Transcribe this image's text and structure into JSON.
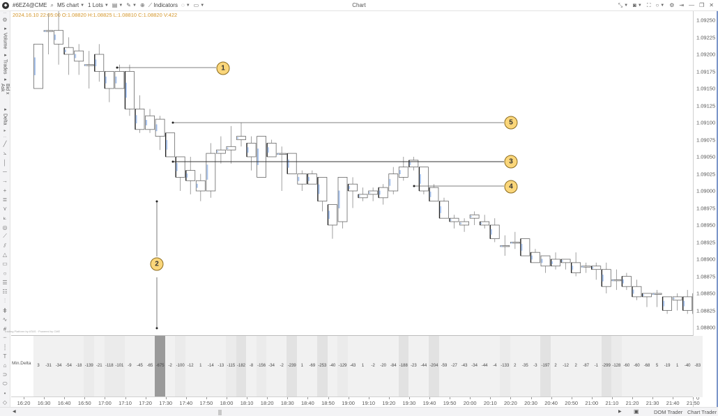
{
  "toolbar": {
    "symbol": "#6EZ4@CME",
    "chart_type": "M5 chart",
    "lots": "1 Lots",
    "indicators_label": "Indicators",
    "window_title": "Chart",
    "icons": [
      "search-icon",
      "template-icon",
      "pencil-icon",
      "zoom-icon",
      "indicators-icon",
      "circle-icon",
      "layout-icon",
      "collapse-icon",
      "camera-icon",
      "fullscreen-icon",
      "circle-icon",
      "gear-icon",
      "pin-icon",
      "minimize-icon",
      "restore-icon",
      "close-icon"
    ]
  },
  "ohlc_line": "2024.16.10 22:05:00 O:1.08820 H:1.08825 L:1.08810 C:1.08820 V:422",
  "left_tabs": [
    "Volume",
    "Trades",
    "Bid x Ask",
    "Delta"
  ],
  "left_tools": [
    "line-tool-icon",
    "ray-tool-icon",
    "vertical-line-icon",
    "horizontal-line-icon",
    "arrow-icon",
    "crosshair-icon",
    "channel-icon",
    "pitchfork-icon",
    "fan-icon",
    "target-icon",
    "ruler-icon",
    "parallel-icon",
    "triangle-icon",
    "rectangle-icon",
    "ellipse-icon",
    "fib-retracement-icon",
    "fib-extension-icon",
    "fib-time-icon",
    "gann-icon",
    "wave-icon",
    "measure-icon",
    "range-icon",
    "vertical-range-icon",
    "text-icon",
    "tag-icon",
    "callout-icon",
    "note-icon",
    "dot-icon",
    "magnet-icon"
  ],
  "price_axis": {
    "labels": [
      "1.09250",
      "1.09225",
      "1.09200",
      "1.09175",
      "1.09150",
      "1.09125",
      "1.09100",
      "1.09075",
      "1.09050",
      "1.09025",
      "1.09000",
      "1.08975",
      "1.08950",
      "1.08925",
      "1.08900",
      "1.08875",
      "1.08850",
      "1.08825",
      "1.08800"
    ],
    "delta_top": "0",
    "delta_bottom": "0"
  },
  "time_axis": [
    "16:20",
    "16:30",
    "16:40",
    "16:50",
    "17:00",
    "17:10",
    "17:20",
    "17:30",
    "17:40",
    "17:50",
    "18:00",
    "18:10",
    "18:20",
    "18:30",
    "18:40",
    "18:50",
    "19:00",
    "19:10",
    "19:20",
    "19:30",
    "19:40",
    "19:50",
    "20:00",
    "20:10",
    "20:20",
    "20:30",
    "20:40",
    "20:50",
    "21:00",
    "21:10",
    "21:20",
    "21:30",
    "21:40",
    "21:50"
  ],
  "delta_pane": {
    "label": "Min.Delta",
    "values": [
      "3",
      "-31",
      "-34",
      "-54",
      "-18",
      "-139",
      "-21",
      "-118",
      "-101",
      "-9",
      "-45",
      "-65",
      "-675",
      "-2",
      "-100",
      "-12",
      "1",
      "-14",
      "-13",
      "-115",
      "-182",
      "-8",
      "-156",
      "-34",
      "-2",
      "-239",
      "1",
      "-69",
      "-253",
      "-40",
      "-129",
      "-43",
      "1",
      "-2",
      "-20",
      "-84",
      "-188",
      "-23",
      "-44",
      "-204",
      "-59",
      "-27",
      "-43",
      "-34",
      "-44",
      "-4",
      "-133",
      "2",
      "-35",
      "-3",
      "-197",
      "2",
      "-12",
      "2",
      "-87",
      "-1",
      "-299",
      "-128",
      "-60",
      "-60",
      "-68",
      "5",
      "-19",
      "1",
      "-40",
      "-83"
    ]
  },
  "annotations": [
    {
      "num": "1"
    },
    {
      "num": "2"
    },
    {
      "num": "3"
    },
    {
      "num": "4"
    },
    {
      "num": "5"
    }
  ],
  "watermark": "Trading Platform by ATAS · Powered by CME",
  "bottombar": {
    "dom_trader": "DOM Trader",
    "chart_trader": "Chart Trader"
  },
  "colors": {
    "ohlc_text": "#d4962a",
    "badge_fill": "#fad67a",
    "candle_border": "#555555",
    "volume_profile": "#a9c4ee",
    "delta_highlight": "#9a9a9a"
  }
}
